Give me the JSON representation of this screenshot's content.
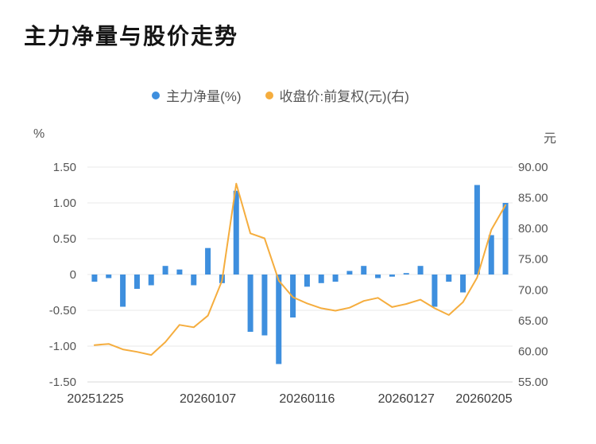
{
  "title": "主力净量与股价走势",
  "legend": {
    "items": [
      {
        "label": "主力净量(%)",
        "color": "#3E8FDE"
      },
      {
        "label": "收盘价:前复权(元)(右)",
        "color": "#F5AD3E"
      }
    ]
  },
  "axes": {
    "left_unit": "%",
    "right_unit": "元"
  },
  "colors": {
    "background": "#ffffff",
    "grid": "#E8E8E8",
    "axis_line": "#D9D9D9",
    "y_tick_text": "#555555",
    "x_tick_text": "#3C3C3C",
    "bar": "#3E8FDE",
    "line": "#F5AD3E"
  },
  "chart_data": {
    "type": "combo",
    "title": "主力净量与股价走势",
    "legend_position": "top",
    "grid": true,
    "x_axis_type": "category",
    "x": [
      "20251225",
      "20251226",
      "20251229",
      "20251230",
      "20251231",
      "20260102",
      "20260105",
      "20260106",
      "20260107",
      "20260108",
      "20260109",
      "20260112",
      "20260113",
      "20260114",
      "20260115",
      "20260116",
      "20260119",
      "20260120",
      "20260121",
      "20260122",
      "20260123",
      "20260126",
      "20260127",
      "20260128",
      "20260129",
      "20260130",
      "20260202",
      "20260203",
      "20260204",
      "20260205"
    ],
    "x_tick_labels": [
      "20251225",
      "20260107",
      "20260116",
      "20260127",
      "20260205"
    ],
    "x_tick_indices": [
      0,
      8,
      15,
      22,
      29
    ],
    "left_axis": {
      "unit": "%",
      "min": -1.5,
      "max": 1.5,
      "ticks": [
        1.5,
        1.0,
        0.5,
        0,
        -0.5,
        -1.0,
        -1.5
      ],
      "tick_labels": [
        "1.50",
        "1.00",
        "0.50",
        "0",
        "-0.50",
        "-1.00",
        "-1.50"
      ]
    },
    "right_axis": {
      "unit": "元",
      "min": 55,
      "max": 90,
      "ticks": [
        90,
        85,
        80,
        75,
        70,
        65,
        60,
        55
      ],
      "tick_labels": [
        "90.00",
        "85.00",
        "80.00",
        "75.00",
        "70.00",
        "65.00",
        "60.00",
        "55.00"
      ]
    },
    "series": [
      {
        "name": "主力净量(%)",
        "type": "bar",
        "yaxis": "left",
        "color": "#3E8FDE",
        "values": [
          -0.1,
          -0.05,
          -0.45,
          -0.2,
          -0.15,
          0.12,
          0.07,
          -0.15,
          0.37,
          -0.12,
          1.17,
          -0.8,
          -0.85,
          -1.25,
          -0.6,
          -0.17,
          -0.12,
          -0.1,
          0.05,
          0.12,
          -0.05,
          -0.03,
          0.02,
          0.12,
          -0.45,
          -0.1,
          -0.25,
          1.25,
          0.55,
          1.0
        ]
      },
      {
        "name": "收盘价:前复权(元)(右)",
        "type": "line",
        "yaxis": "right",
        "color": "#F5AD3E",
        "values": [
          61.0,
          61.2,
          60.3,
          59.9,
          59.4,
          61.5,
          64.3,
          63.9,
          65.8,
          71.5,
          87.3,
          79.2,
          78.4,
          71.5,
          68.8,
          67.8,
          67.0,
          66.6,
          67.1,
          68.2,
          68.7,
          67.2,
          67.7,
          68.4,
          67.0,
          65.9,
          68.0,
          72.0,
          79.8,
          83.8
        ]
      }
    ]
  }
}
